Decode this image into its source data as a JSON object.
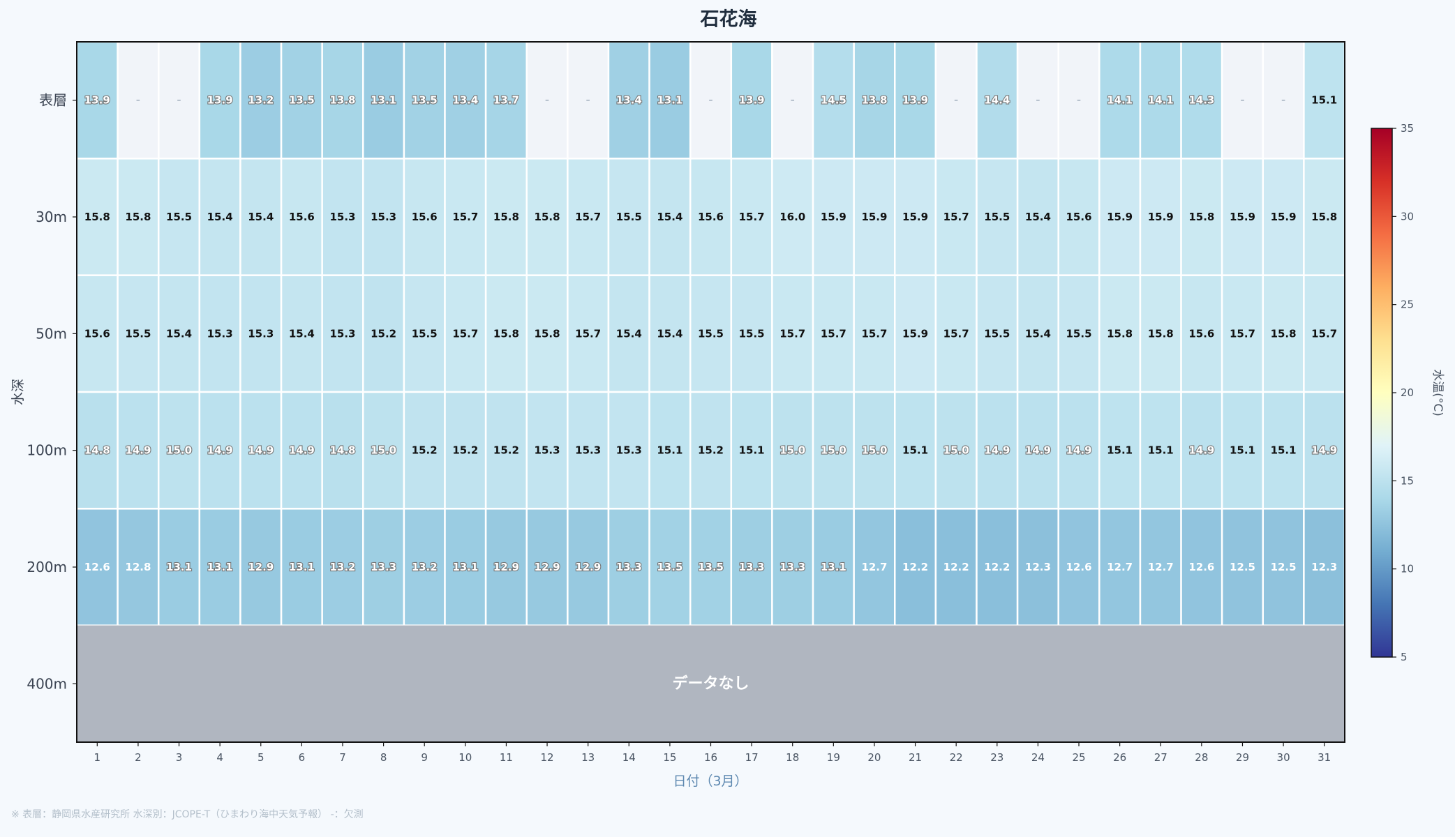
{
  "chart_data": {
    "type": "heatmap",
    "title": "石花海",
    "xlabel": "日付（3月）",
    "ylabel": "水深",
    "colorbar_label": "水温(°C)",
    "colorbar_ticks": [
      5,
      10,
      15,
      20,
      25,
      30,
      35
    ],
    "vmin": 5,
    "vmax": 35,
    "colormap": "RdYlBu_r",
    "missing_marker": "-",
    "no_data_label": "データなし",
    "footnote": "※ 表層：静岡県水産研究所 水深別：JCOPE-T（ひまわり海中天気予報） -：欠測",
    "x": [
      "1",
      "2",
      "3",
      "4",
      "5",
      "6",
      "7",
      "8",
      "9",
      "10",
      "11",
      "12",
      "13",
      "14",
      "15",
      "16",
      "17",
      "18",
      "19",
      "20",
      "21",
      "22",
      "23",
      "24",
      "25",
      "26",
      "27",
      "28",
      "29",
      "30",
      "31"
    ],
    "depths": [
      "表層",
      "30m",
      "50m",
      "100m",
      "200m",
      "400m"
    ],
    "values": [
      [
        13.9,
        null,
        null,
        13.9,
        13.2,
        13.5,
        13.8,
        13.1,
        13.5,
        13.4,
        13.7,
        null,
        null,
        13.4,
        13.1,
        null,
        13.9,
        null,
        14.5,
        13.8,
        13.9,
        null,
        14.4,
        null,
        null,
        14.1,
        14.1,
        14.3,
        null,
        null,
        15.1
      ],
      [
        15.8,
        15.8,
        15.5,
        15.4,
        15.4,
        15.6,
        15.3,
        15.3,
        15.6,
        15.7,
        15.8,
        15.8,
        15.7,
        15.5,
        15.4,
        15.6,
        15.7,
        16.0,
        15.9,
        15.9,
        15.9,
        15.7,
        15.5,
        15.4,
        15.6,
        15.9,
        15.9,
        15.8,
        15.9,
        15.9,
        15.8
      ],
      [
        15.6,
        15.5,
        15.4,
        15.3,
        15.3,
        15.4,
        15.3,
        15.2,
        15.5,
        15.7,
        15.8,
        15.8,
        15.7,
        15.4,
        15.4,
        15.5,
        15.5,
        15.7,
        15.7,
        15.7,
        15.9,
        15.7,
        15.5,
        15.4,
        15.5,
        15.8,
        15.8,
        15.6,
        15.7,
        15.8,
        15.7
      ],
      [
        14.8,
        14.9,
        15.0,
        14.9,
        14.9,
        14.9,
        14.8,
        15.0,
        15.2,
        15.2,
        15.2,
        15.3,
        15.3,
        15.3,
        15.1,
        15.2,
        15.1,
        15.0,
        15.0,
        15.0,
        15.1,
        15.0,
        14.9,
        14.9,
        14.9,
        15.1,
        15.1,
        14.9,
        15.1,
        15.1,
        14.9
      ],
      [
        12.6,
        12.8,
        13.1,
        13.1,
        12.9,
        13.1,
        13.2,
        13.3,
        13.2,
        13.1,
        12.9,
        12.9,
        12.9,
        13.3,
        13.5,
        13.5,
        13.3,
        13.3,
        13.1,
        12.7,
        12.2,
        12.2,
        12.2,
        12.3,
        12.6,
        12.7,
        12.7,
        12.6,
        12.5,
        12.5,
        12.3
      ],
      null
    ],
    "grid": false,
    "legend": "colorbar-right"
  }
}
